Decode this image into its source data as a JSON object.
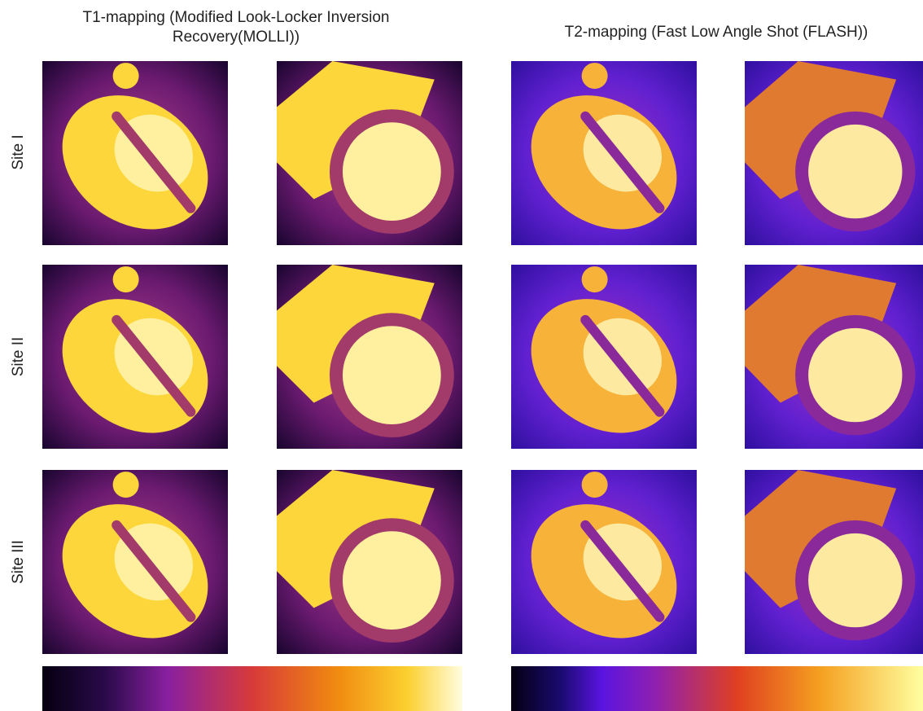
{
  "column_titles": [
    {
      "lines": [
        "T1-mapping (Modified Look-Locker Inversion",
        "Recovery(MOLLI))"
      ]
    },
    {
      "lines": [
        "T2-mapping (Fast Low Angle Shot (FLASH))"
      ]
    }
  ],
  "row_labels": [
    "Site I",
    "Site II",
    "Site III"
  ]
}
